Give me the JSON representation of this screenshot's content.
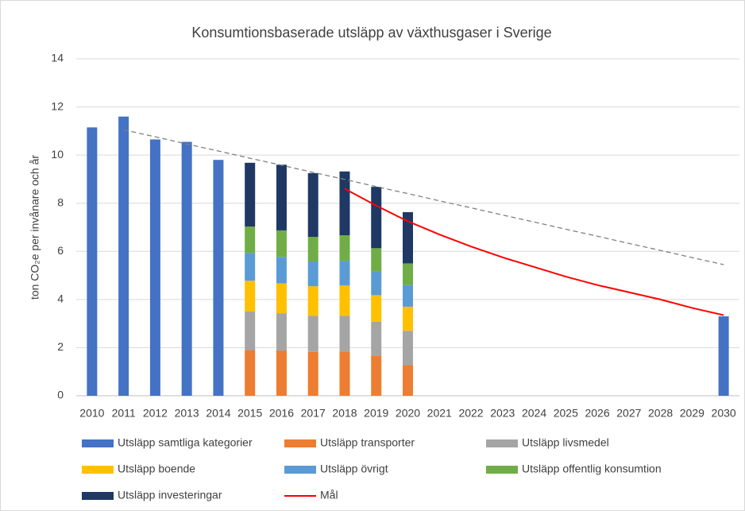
{
  "chart_data": {
    "type": "bar",
    "title": "Konsumtionsbaserade utsläpp av växthusgaser i Sverige",
    "y_label": "ton CO₂e per invånare och år",
    "categories": [
      "2010",
      "2011",
      "2012",
      "2013",
      "2014",
      "2015",
      "2016",
      "2017",
      "2018",
      "2019",
      "2020",
      "2021",
      "2022",
      "2023",
      "2024",
      "2025",
      "2026",
      "2027",
      "2028",
      "2029",
      "2030"
    ],
    "ylim": [
      0,
      14
    ],
    "yticks": [
      0,
      2,
      4,
      6,
      8,
      10,
      12,
      14
    ],
    "grid": true,
    "stacked": true,
    "legend": "bottom",
    "series": [
      {
        "name": "Utsläpp samtliga kategorier",
        "type": "bar",
        "color": "#4472c4",
        "values": [
          11.15,
          11.6,
          10.65,
          10.55,
          9.8,
          null,
          null,
          null,
          null,
          null,
          null,
          null,
          null,
          null,
          null,
          null,
          null,
          null,
          null,
          null,
          3.3
        ]
      },
      {
        "name": "Utsläpp transporter",
        "type": "bar",
        "color": "#ed7d31",
        "values": [
          null,
          null,
          null,
          null,
          null,
          1.9,
          1.88,
          1.82,
          1.83,
          1.65,
          1.27,
          null,
          null,
          null,
          null,
          null,
          null,
          null,
          null,
          null,
          null
        ]
      },
      {
        "name": "Utsläpp livsmedel",
        "type": "bar",
        "color": "#a5a5a5",
        "values": [
          null,
          null,
          null,
          null,
          null,
          1.6,
          1.55,
          1.5,
          1.49,
          1.43,
          1.43,
          null,
          null,
          null,
          null,
          null,
          null,
          null,
          null,
          null,
          null
        ]
      },
      {
        "name": "Utsläpp boende",
        "type": "bar",
        "color": "#ffc000",
        "values": [
          null,
          null,
          null,
          null,
          null,
          1.28,
          1.24,
          1.23,
          1.26,
          1.1,
          1.0,
          null,
          null,
          null,
          null,
          null,
          null,
          null,
          null,
          null,
          null
        ]
      },
      {
        "name": "Utsläpp övrigt",
        "type": "bar",
        "color": "#5b9bd5",
        "values": [
          null,
          null,
          null,
          null,
          null,
          1.15,
          1.1,
          1.03,
          1.02,
          0.99,
          0.9,
          null,
          null,
          null,
          null,
          null,
          null,
          null,
          null,
          null,
          null
        ]
      },
      {
        "name": "Utsläpp offentlig konsumtion",
        "type": "bar",
        "color": "#70ad47",
        "values": [
          null,
          null,
          null,
          null,
          null,
          1.1,
          1.1,
          1.02,
          1.07,
          0.96,
          0.9,
          null,
          null,
          null,
          null,
          null,
          null,
          null,
          null,
          null,
          null
        ]
      },
      {
        "name": "Utsläpp investeringar",
        "type": "bar",
        "color": "#1f3864",
        "values": [
          null,
          null,
          null,
          null,
          null,
          2.65,
          2.73,
          2.65,
          2.65,
          2.55,
          2.13,
          null,
          null,
          null,
          null,
          null,
          null,
          null,
          null,
          null,
          null
        ]
      },
      {
        "name": "Mål",
        "type": "line",
        "color": "#ff0000",
        "values": [
          null,
          null,
          null,
          null,
          null,
          null,
          null,
          null,
          8.6,
          7.9,
          7.25,
          6.7,
          6.2,
          5.75,
          5.35,
          4.95,
          4.6,
          4.3,
          4.0,
          3.65,
          3.35
        ]
      },
      {
        "type": "line",
        "dashed": true,
        "color": "#808080",
        "values": [
          null,
          11.05,
          10.76,
          10.46,
          10.17,
          9.87,
          9.58,
          9.28,
          8.99,
          8.69,
          8.4,
          8.1,
          7.81,
          7.51,
          7.22,
          6.92,
          6.63,
          6.33,
          6.04,
          5.74,
          5.45
        ]
      }
    ]
  }
}
